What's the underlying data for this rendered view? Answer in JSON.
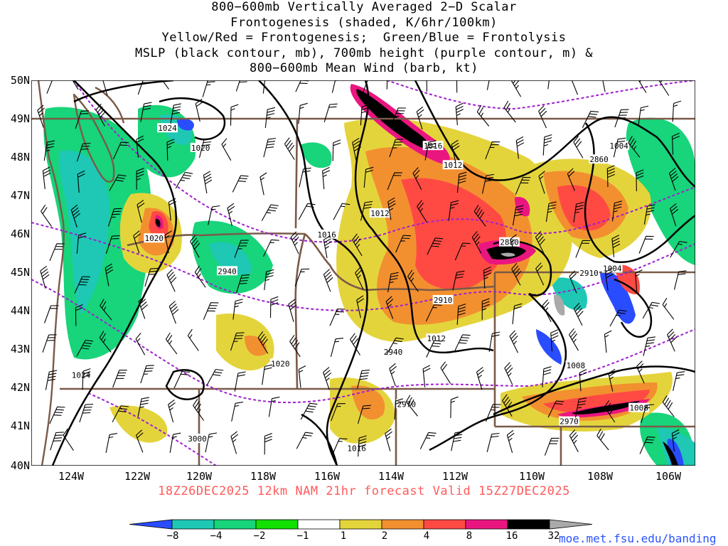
{
  "title": {
    "line1": "800−600mb Vertically Averaged 2−D Scalar",
    "line2": "Frontogenesis (shaded, K/6hr/100km)",
    "line3": "Yellow/Red = Frontogenesis;  Green/Blue = Frontolysis",
    "line4": "MSLP (black contour, mb), 700mb height (purple contour, m) &",
    "line5": "800−600mb Mean Wind (barb, kt)"
  },
  "run_info": "18Z26DEC2025 12km NAM 21hr forecast Valid 15Z27DEC2025",
  "credit": "moe.met.fsu.edu/banding",
  "map": {
    "lat_labels": [
      "50N",
      "49N",
      "48N",
      "47N",
      "46N",
      "45N",
      "44N",
      "43N",
      "42N",
      "41N",
      "40N"
    ],
    "lon_labels": [
      "124W",
      "122W",
      "120W",
      "118W",
      "116W",
      "114W",
      "112W",
      "110W",
      "108W",
      "106W"
    ],
    "mslp_labels": [
      {
        "text": "1024",
        "lon": -120.9,
        "lat": 48.76
      },
      {
        "text": "1020",
        "lon": -119.9,
        "lat": 48.25
      },
      {
        "text": "1016",
        "lon": -112.9,
        "lat": 48.3
      },
      {
        "text": "1012",
        "lon": -112.3,
        "lat": 47.8
      },
      {
        "text": "1004",
        "lon": -107.3,
        "lat": 48.3
      },
      {
        "text": "1012",
        "lon": -114.5,
        "lat": 46.55
      },
      {
        "text": "1016",
        "lon": -116.1,
        "lat": 46.0
      },
      {
        "text": "1020",
        "lon": -121.3,
        "lat": 45.9
      },
      {
        "text": "1004",
        "lon": -107.5,
        "lat": 45.12
      },
      {
        "text": "1012",
        "lon": -112.8,
        "lat": 43.3
      },
      {
        "text": "1008",
        "lon": -108.6,
        "lat": 42.6
      },
      {
        "text": "1024",
        "lon": -123.5,
        "lat": 42.35
      },
      {
        "text": "1020",
        "lon": -117.5,
        "lat": 42.65
      },
      {
        "text": "1016",
        "lon": -115.2,
        "lat": 40.45
      },
      {
        "text": "1008",
        "lon": -106.7,
        "lat": 41.5
      }
    ],
    "height_labels": [
      {
        "text": "2860",
        "lon": -107.9,
        "lat": 47.95
      },
      {
        "text": "2880",
        "lon": -110.6,
        "lat": 45.8
      },
      {
        "text": "2940",
        "lon": -119.1,
        "lat": 45.05
      },
      {
        "text": "2910",
        "lon": -112.6,
        "lat": 44.3
      },
      {
        "text": "2910",
        "lon": -108.2,
        "lat": 45.0
      },
      {
        "text": "2940",
        "lon": -114.1,
        "lat": 42.95
      },
      {
        "text": "2970",
        "lon": -113.7,
        "lat": 41.6
      },
      {
        "text": "2970",
        "lon": -108.8,
        "lat": 41.15
      },
      {
        "text": "3000",
        "lon": -120.0,
        "lat": 40.7
      }
    ]
  },
  "colorbar": {
    "ticks": [
      "−8",
      "−4",
      "−2",
      "−1",
      "1",
      "2",
      "4",
      "8",
      "16",
      "32"
    ],
    "colors": [
      "#2a4cff",
      "#1ec8b4",
      "#18d47a",
      "#11e000",
      "#ffffff",
      "#e4d43c",
      "#f29030",
      "#ff4a44",
      "#ea1680",
      "#000000",
      "#aaaaaa"
    ]
  }
}
